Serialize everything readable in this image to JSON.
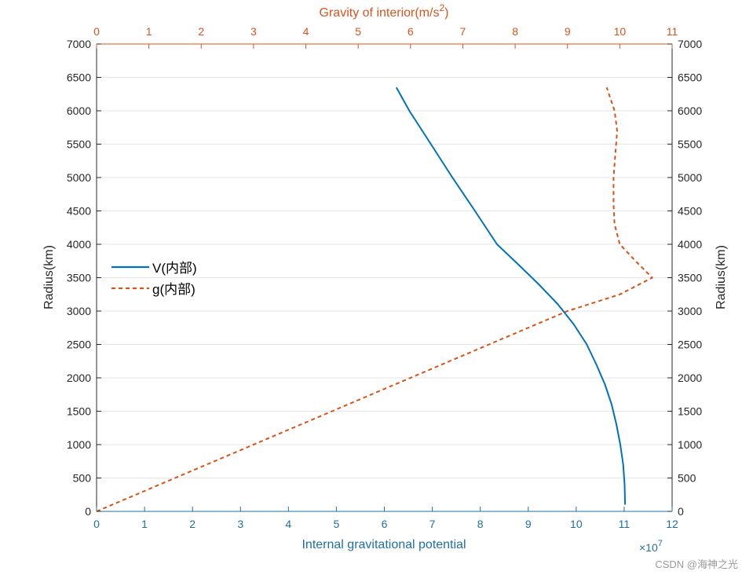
{
  "chart_data": {
    "type": "line",
    "title": "",
    "xlabel": "Internal gravitational potential",
    "xlabel_top": "Gravity of interior(m/s",
    "xlabel_top_sup": "2",
    "xlabel_top_close": ")",
    "ylabel": "Radius(km)",
    "ylabel_right": "Radius(km)",
    "x_exponent_base": "×10",
    "x_exponent_power": "7",
    "xlim": [
      0,
      12
    ],
    "xlim_top": [
      0,
      11
    ],
    "ylim": [
      0,
      7000
    ],
    "x_ticks": [
      "0",
      "1",
      "2",
      "3",
      "4",
      "5",
      "6",
      "7",
      "8",
      "9",
      "10",
      "11",
      "12"
    ],
    "x_ticks_top": [
      "0",
      "1",
      "2",
      "3",
      "4",
      "5",
      "6",
      "7",
      "8",
      "9",
      "10",
      "11"
    ],
    "y_ticks": [
      "0",
      "500",
      "1000",
      "1500",
      "2000",
      "2500",
      "3000",
      "3500",
      "4000",
      "4500",
      "5000",
      "5500",
      "6000",
      "6500",
      "7000"
    ],
    "grid": "horizontal",
    "legend_position": "left",
    "series": [
      {
        "name": "V(内部)",
        "axis": "bottom",
        "color": "#0072bd",
        "style": "solid",
        "points": [
          [
            11.02,
            100
          ],
          [
            11.01,
            400
          ],
          [
            10.98,
            700
          ],
          [
            10.92,
            1000
          ],
          [
            10.84,
            1300
          ],
          [
            10.74,
            1600
          ],
          [
            10.6,
            1900
          ],
          [
            10.42,
            2200
          ],
          [
            10.22,
            2500
          ],
          [
            9.95,
            2800
          ],
          [
            9.62,
            3100
          ],
          [
            9.22,
            3400
          ],
          [
            8.79,
            3700
          ],
          [
            8.35,
            4000
          ],
          [
            7.89,
            4500
          ],
          [
            7.42,
            5000
          ],
          [
            6.97,
            5500
          ],
          [
            6.52,
            6000
          ],
          [
            6.25,
            6350
          ]
        ]
      },
      {
        "name": "g(内部)",
        "axis": "top",
        "color": "#d95319",
        "style": "dashed",
        "points": [
          [
            0,
            0
          ],
          [
            0.9,
            300
          ],
          [
            1.8,
            600
          ],
          [
            2.7,
            900
          ],
          [
            3.6,
            1200
          ],
          [
            4.5,
            1500
          ],
          [
            5.4,
            1800
          ],
          [
            6.3,
            2100
          ],
          [
            7.2,
            2400
          ],
          [
            8.1,
            2700
          ],
          [
            9.0,
            3000
          ],
          [
            10.0,
            3250
          ],
          [
            10.62,
            3500
          ],
          [
            10.3,
            3750
          ],
          [
            10.0,
            4000
          ],
          [
            9.9,
            4300
          ],
          [
            9.88,
            4600
          ],
          [
            9.88,
            5000
          ],
          [
            9.92,
            5400
          ],
          [
            9.95,
            5700
          ],
          [
            9.9,
            6000
          ],
          [
            9.75,
            6350
          ]
        ]
      }
    ]
  },
  "watermark": "CSDN @海神之光"
}
